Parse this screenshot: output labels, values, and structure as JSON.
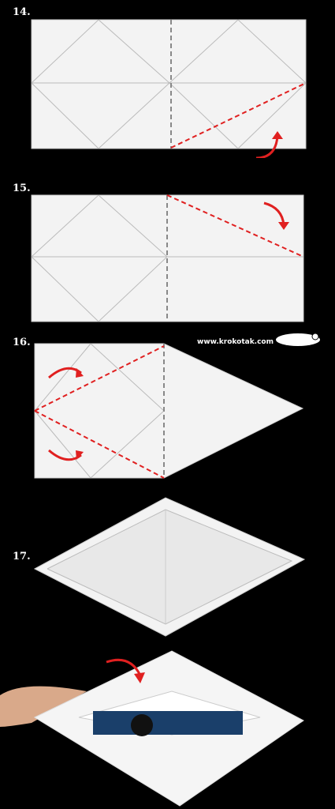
{
  "steps": [
    {
      "label": "14."
    },
    {
      "label": "15."
    },
    {
      "label": "16."
    },
    {
      "label": "17."
    }
  ],
  "watermark": {
    "text": "www.krokotak.com",
    "icon": "crocodile-logo-icon"
  },
  "colors": {
    "paper": "#f2f2f2",
    "fold_line": "#e02020",
    "crease": "#888888",
    "background": "#000000"
  }
}
